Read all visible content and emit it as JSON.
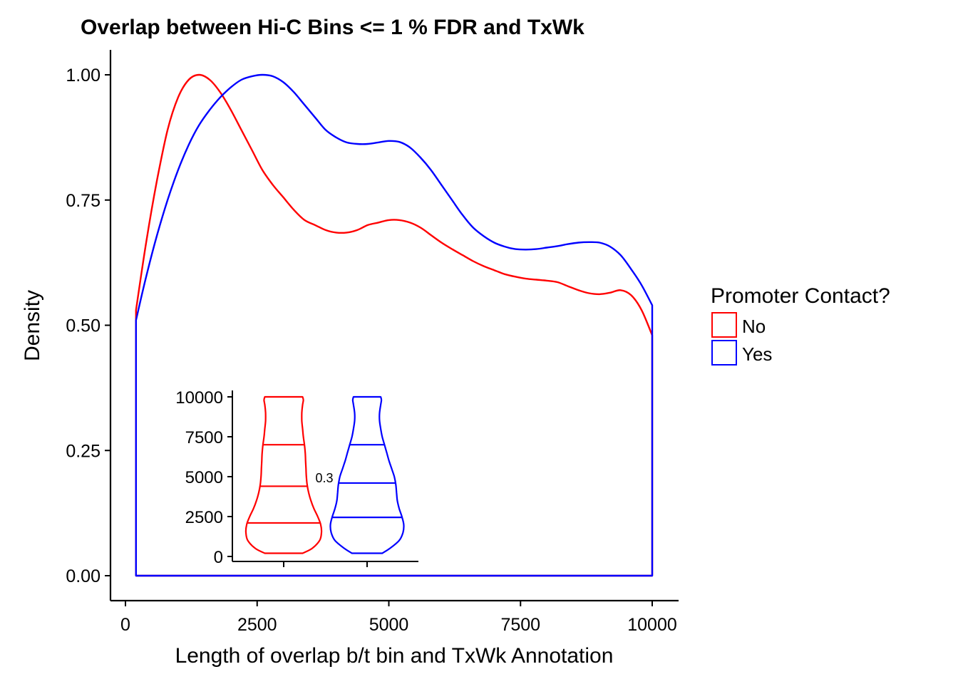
{
  "chart_data": [
    {
      "type": "area",
      "title": "Overlap between Hi-C Bins <= 1 % FDR and TxWk",
      "xlabel": "Length of overlap b/t bin and TxWk Annotation",
      "ylabel": "Density",
      "xlim": [
        0,
        10000
      ],
      "ylim": [
        0,
        1
      ],
      "x_ticks": [
        0,
        2500,
        5000,
        7500,
        10000
      ],
      "x_tick_labels": [
        "0",
        "2500",
        "5000",
        "7500",
        "10000"
      ],
      "y_ticks": [
        0,
        0.25,
        0.5,
        0.75,
        1.0
      ],
      "y_tick_labels": [
        "0.00",
        "0.25",
        "0.50",
        "0.75",
        "1.00"
      ],
      "grid": false,
      "legend": {
        "title": "Promoter Contact?",
        "placement": "right",
        "entries": [
          "No",
          "Yes"
        ]
      },
      "series": [
        {
          "name": "No",
          "color": "#ff0000",
          "x": [
            200,
            400,
            600,
            800,
            1000,
            1200,
            1400,
            1600,
            1800,
            2000,
            2200,
            2400,
            2600,
            2800,
            3000,
            3200,
            3400,
            3600,
            3800,
            4000,
            4200,
            4400,
            4600,
            4800,
            5000,
            5200,
            5400,
            5600,
            5800,
            6000,
            6200,
            6400,
            6600,
            6800,
            7000,
            7200,
            7400,
            7600,
            7800,
            8000,
            8200,
            8400,
            8600,
            8800,
            9000,
            9200,
            9400,
            9600,
            9800,
            10000
          ],
          "y": [
            0.53,
            0.67,
            0.79,
            0.89,
            0.955,
            0.99,
            1.0,
            0.99,
            0.965,
            0.93,
            0.89,
            0.85,
            0.81,
            0.78,
            0.755,
            0.73,
            0.71,
            0.7,
            0.69,
            0.685,
            0.685,
            0.69,
            0.7,
            0.705,
            0.71,
            0.71,
            0.705,
            0.695,
            0.68,
            0.665,
            0.652,
            0.64,
            0.628,
            0.618,
            0.61,
            0.602,
            0.597,
            0.593,
            0.591,
            0.589,
            0.586,
            0.578,
            0.57,
            0.564,
            0.562,
            0.565,
            0.57,
            0.56,
            0.53,
            0.48
          ]
        },
        {
          "name": "Yes",
          "color": "#0000ff",
          "x": [
            200,
            400,
            600,
            800,
            1000,
            1200,
            1400,
            1600,
            1800,
            2000,
            2200,
            2400,
            2600,
            2800,
            3000,
            3200,
            3400,
            3600,
            3800,
            4000,
            4200,
            4400,
            4600,
            4800,
            5000,
            5200,
            5400,
            5600,
            5800,
            6000,
            6200,
            6400,
            6600,
            6800,
            7000,
            7200,
            7400,
            7600,
            7800,
            8000,
            8200,
            8400,
            8600,
            8800,
            9000,
            9200,
            9400,
            9600,
            9800,
            10000
          ],
          "y": [
            0.51,
            0.6,
            0.68,
            0.75,
            0.81,
            0.86,
            0.9,
            0.93,
            0.955,
            0.975,
            0.99,
            0.997,
            1.0,
            0.997,
            0.985,
            0.965,
            0.94,
            0.915,
            0.89,
            0.875,
            0.865,
            0.862,
            0.862,
            0.865,
            0.868,
            0.866,
            0.855,
            0.835,
            0.81,
            0.78,
            0.75,
            0.72,
            0.695,
            0.678,
            0.665,
            0.657,
            0.652,
            0.651,
            0.652,
            0.655,
            0.658,
            0.662,
            0.665,
            0.666,
            0.665,
            0.657,
            0.64,
            0.612,
            0.58,
            0.54
          ]
        }
      ]
    },
    {
      "type": "violin",
      "inset": true,
      "ylim": [
        0,
        10000
      ],
      "y_ticks": [
        0,
        2500,
        5000,
        7500,
        10000
      ],
      "y_tick_labels": [
        "0",
        "2500",
        "5000",
        "7500",
        "10000"
      ],
      "annotation": "0.3",
      "groups": [
        {
          "name": "No",
          "color": "#ff0000",
          "quantiles": [
            2100,
            4400,
            7000
          ],
          "profile_y": [
            200,
            500,
            1000,
            1500,
            2000,
            2500,
            3000,
            3500,
            4000,
            4500,
            5000,
            5500,
            6000,
            6500,
            7000,
            7500,
            8000,
            8500,
            9000,
            9500,
            9800,
            10000
          ],
          "half_width": [
            0.5,
            0.75,
            0.95,
            1.0,
            0.98,
            0.9,
            0.8,
            0.72,
            0.66,
            0.62,
            0.6,
            0.59,
            0.58,
            0.57,
            0.55,
            0.52,
            0.5,
            0.48,
            0.48,
            0.5,
            0.52,
            0.5
          ]
        },
        {
          "name": "Yes",
          "color": "#0000ff",
          "quantiles": [
            2450,
            4600,
            7000
          ],
          "profile_y": [
            200,
            500,
            1000,
            1500,
            2000,
            2500,
            3000,
            3500,
            4000,
            4500,
            5000,
            5500,
            6000,
            6500,
            7000,
            7500,
            8000,
            8500,
            9000,
            9500,
            9800,
            10000
          ],
          "half_width": [
            0.4,
            0.6,
            0.85,
            0.95,
            0.97,
            0.92,
            0.85,
            0.8,
            0.78,
            0.76,
            0.72,
            0.65,
            0.58,
            0.52,
            0.46,
            0.4,
            0.36,
            0.33,
            0.33,
            0.36,
            0.38,
            0.36
          ]
        }
      ]
    }
  ]
}
